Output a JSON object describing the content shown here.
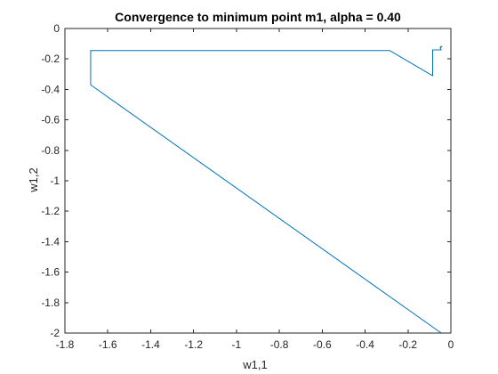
{
  "chart_data": {
    "type": "line",
    "title": "Convergence to minimum point m1, alpha = 0.40",
    "xlabel": "w1,1",
    "ylabel": "w1,2",
    "xlim": [
      -1.8,
      0
    ],
    "ylim": [
      -2,
      0
    ],
    "xticks": [
      -1.8,
      -1.6,
      -1.4,
      -1.2,
      -1,
      -0.8,
      -0.6,
      -0.4,
      -0.2,
      0
    ],
    "yticks": [
      0,
      -0.2,
      -0.4,
      -0.6,
      -0.8,
      -1,
      -1.2,
      -1.4,
      -1.6,
      -1.8,
      -2
    ],
    "xtick_labels": [
      "-1.8",
      "-1.6",
      "-1.4",
      "-1.2",
      "-1",
      "-0.8",
      "-0.6",
      "-0.4",
      "-0.2",
      "0"
    ],
    "ytick_labels": [
      "0",
      "-0.2",
      "-0.4",
      "-0.6",
      "-0.8",
      "-1",
      "-1.2",
      "-1.4",
      "-1.6",
      "-1.8",
      "-2"
    ],
    "grid": false,
    "box": true,
    "series": [
      {
        "color": "#0072bd",
        "x": [
          -0.045,
          -1.68,
          -1.68,
          -0.285,
          -0.085,
          -0.085,
          -0.045,
          -0.05,
          -0.042,
          -0.048
        ],
        "y": [
          -2.0,
          -0.37,
          -0.145,
          -0.145,
          -0.31,
          -0.14,
          -0.14,
          -0.125,
          -0.12,
          -0.115
        ]
      }
    ]
  }
}
